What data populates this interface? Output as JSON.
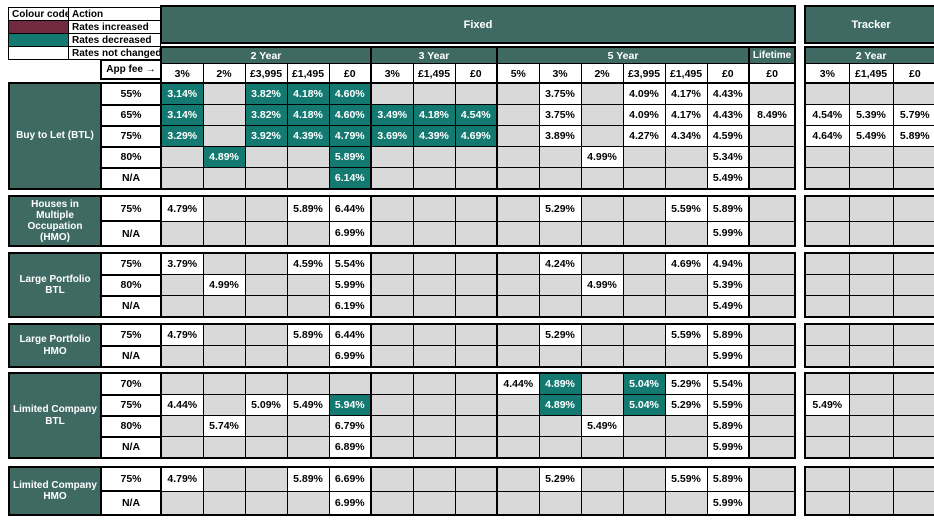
{
  "colors": {
    "header_teal": "#3E6A63",
    "decreased_teal": "#147A71",
    "increased_maroon": "#712A40",
    "empty_gray": "#D9D9D9",
    "border": "#000000"
  },
  "legend": {
    "header": [
      "Colour code",
      "Action"
    ],
    "rows": [
      {
        "color": "#712A40",
        "label": "Rates increased"
      },
      {
        "color": "#147A71",
        "label": "Rates decreased"
      },
      {
        "color": "#FFFFFF",
        "label": "Rates not changed"
      }
    ]
  },
  "header": {
    "fixed_label": "Fixed",
    "tracker_label": "Tracker",
    "app_fee_label": "App fee →",
    "fixed_groups": [
      {
        "label": "2 Year",
        "fees": [
          "3%",
          "2%",
          "£3,995",
          "£1,495",
          "£0"
        ]
      },
      {
        "label": "3 Year",
        "fees": [
          "3%",
          "£1,495",
          "£0"
        ]
      },
      {
        "label": "5 Year",
        "fees": [
          "5%",
          "3%",
          "2%",
          "£3,995",
          "£1,495",
          "£0"
        ]
      },
      {
        "label": "Lifetime",
        "fees": [
          "£0"
        ]
      }
    ],
    "tracker_groups": [
      {
        "label": "2 Year",
        "fees": [
          "3%",
          "£1,495",
          "£0"
        ]
      }
    ]
  },
  "row_groups": [
    {
      "label": "Buy to Let (BTL)",
      "rows": [
        {
          "ltv": "55%",
          "fixed": [
            {
              "v": "3.14%",
              "d": true
            },
            null,
            {
              "v": "3.82%",
              "d": true
            },
            {
              "v": "4.18%",
              "d": true
            },
            {
              "v": "4.60%",
              "d": true
            },
            null,
            null,
            null,
            null,
            "3.75%",
            null,
            "4.09%",
            "4.17%",
            "4.43%",
            null
          ],
          "tracker": [
            null,
            null,
            null
          ]
        },
        {
          "ltv": "65%",
          "fixed": [
            {
              "v": "3.14%",
              "d": true
            },
            null,
            {
              "v": "3.82%",
              "d": true
            },
            {
              "v": "4.18%",
              "d": true
            },
            {
              "v": "4.60%",
              "d": true
            },
            {
              "v": "3.49%",
              "d": true
            },
            {
              "v": "4.18%",
              "d": true
            },
            {
              "v": "4.54%",
              "d": true
            },
            null,
            "3.75%",
            null,
            "4.09%",
            "4.17%",
            "4.43%",
            "8.49%"
          ],
          "tracker": [
            "4.54%",
            "5.39%",
            "5.79%"
          ]
        },
        {
          "ltv": "75%",
          "fixed": [
            {
              "v": "3.29%",
              "d": true
            },
            null,
            {
              "v": "3.92%",
              "d": true
            },
            {
              "v": "4.39%",
              "d": true
            },
            {
              "v": "4.79%",
              "d": true
            },
            {
              "v": "3.69%",
              "d": true
            },
            {
              "v": "4.39%",
              "d": true
            },
            {
              "v": "4.69%",
              "d": true
            },
            null,
            "3.89%",
            null,
            "4.27%",
            "4.34%",
            "4.59%",
            null
          ],
          "tracker": [
            "4.64%",
            "5.49%",
            "5.89%"
          ]
        },
        {
          "ltv": "80%",
          "fixed": [
            null,
            {
              "v": "4.89%",
              "d": true
            },
            null,
            null,
            {
              "v": "5.89%",
              "d": true
            },
            null,
            null,
            null,
            null,
            null,
            "4.99%",
            null,
            null,
            "5.34%",
            null
          ],
          "tracker": [
            null,
            null,
            null
          ]
        },
        {
          "ltv": "N/A",
          "fixed": [
            null,
            null,
            null,
            null,
            {
              "v": "6.14%",
              "d": true
            },
            null,
            null,
            null,
            null,
            null,
            null,
            null,
            null,
            "5.49%",
            null
          ],
          "tracker": [
            null,
            null,
            null
          ]
        }
      ]
    },
    {
      "label": "Houses in Multiple Occupation (HMO)",
      "rows": [
        {
          "ltv": "75%",
          "fixed": [
            "4.79%",
            null,
            null,
            "5.89%",
            "6.44%",
            null,
            null,
            null,
            null,
            "5.29%",
            null,
            null,
            "5.59%",
            "5.89%",
            null
          ],
          "tracker": [
            null,
            null,
            null
          ]
        },
        {
          "ltv": "N/A",
          "fixed": [
            null,
            null,
            null,
            null,
            "6.99%",
            null,
            null,
            null,
            null,
            null,
            null,
            null,
            null,
            "5.99%",
            null
          ],
          "tracker": [
            null,
            null,
            null
          ]
        }
      ]
    },
    {
      "label": "Large Portfolio BTL",
      "rows": [
        {
          "ltv": "75%",
          "fixed": [
            "3.79%",
            null,
            null,
            "4.59%",
            "5.54%",
            null,
            null,
            null,
            null,
            "4.24%",
            null,
            null,
            "4.69%",
            "4.94%",
            null
          ],
          "tracker": [
            null,
            null,
            null
          ]
        },
        {
          "ltv": "80%",
          "fixed": [
            null,
            "4.99%",
            null,
            null,
            "5.99%",
            null,
            null,
            null,
            null,
            null,
            "4.99%",
            null,
            null,
            "5.39%",
            null
          ],
          "tracker": [
            null,
            null,
            null
          ]
        },
        {
          "ltv": "N/A",
          "fixed": [
            null,
            null,
            null,
            null,
            "6.19%",
            null,
            null,
            null,
            null,
            null,
            null,
            null,
            null,
            "5.49%",
            null
          ],
          "tracker": [
            null,
            null,
            null
          ]
        }
      ]
    },
    {
      "label": "Large Portfolio HMO",
      "rows": [
        {
          "ltv": "75%",
          "fixed": [
            "4.79%",
            null,
            null,
            "5.89%",
            "6.44%",
            null,
            null,
            null,
            null,
            "5.29%",
            null,
            null,
            "5.59%",
            "5.89%",
            null
          ],
          "tracker": [
            null,
            null,
            null
          ]
        },
        {
          "ltv": "N/A",
          "fixed": [
            null,
            null,
            null,
            null,
            "6.99%",
            null,
            null,
            null,
            null,
            null,
            null,
            null,
            null,
            "5.99%",
            null
          ],
          "tracker": [
            null,
            null,
            null
          ]
        }
      ]
    },
    {
      "label": "Limited Company BTL",
      "rows": [
        {
          "ltv": "70%",
          "fixed": [
            null,
            null,
            null,
            null,
            null,
            null,
            null,
            null,
            "4.44%",
            {
              "v": "4.89%",
              "d": true
            },
            null,
            {
              "v": "5.04%",
              "d": true
            },
            "5.29%",
            "5.54%",
            null
          ],
          "tracker": [
            null,
            null,
            null
          ]
        },
        {
          "ltv": "75%",
          "fixed": [
            "4.44%",
            null,
            "5.09%",
            "5.49%",
            {
              "v": "5.94%",
              "d": true
            },
            null,
            null,
            null,
            null,
            {
              "v": "4.89%",
              "d": true
            },
            null,
            {
              "v": "5.04%",
              "d": true
            },
            "5.29%",
            "5.59%",
            null
          ],
          "tracker": [
            "5.49%",
            null,
            null
          ]
        },
        {
          "ltv": "80%",
          "fixed": [
            null,
            "5.74%",
            null,
            null,
            "6.79%",
            null,
            null,
            null,
            null,
            null,
            "5.49%",
            null,
            null,
            "5.89%",
            null
          ],
          "tracker": [
            null,
            null,
            null
          ]
        },
        {
          "ltv": "N/A",
          "fixed": [
            null,
            null,
            null,
            null,
            "6.89%",
            null,
            null,
            null,
            null,
            null,
            null,
            null,
            null,
            "5.99%",
            null
          ],
          "tracker": [
            null,
            null,
            null
          ]
        }
      ]
    },
    {
      "label": "Limited Company HMO",
      "rows": [
        {
          "ltv": "75%",
          "fixed": [
            "4.79%",
            null,
            null,
            "5.89%",
            "6.69%",
            null,
            null,
            null,
            null,
            "5.29%",
            null,
            null,
            "5.59%",
            "5.89%",
            null
          ],
          "tracker": [
            null,
            null,
            null
          ]
        },
        {
          "ltv": "N/A",
          "fixed": [
            null,
            null,
            null,
            null,
            "6.99%",
            null,
            null,
            null,
            null,
            null,
            null,
            null,
            null,
            "5.99%",
            null
          ],
          "tracker": [
            null,
            null,
            null
          ]
        }
      ]
    }
  ]
}
